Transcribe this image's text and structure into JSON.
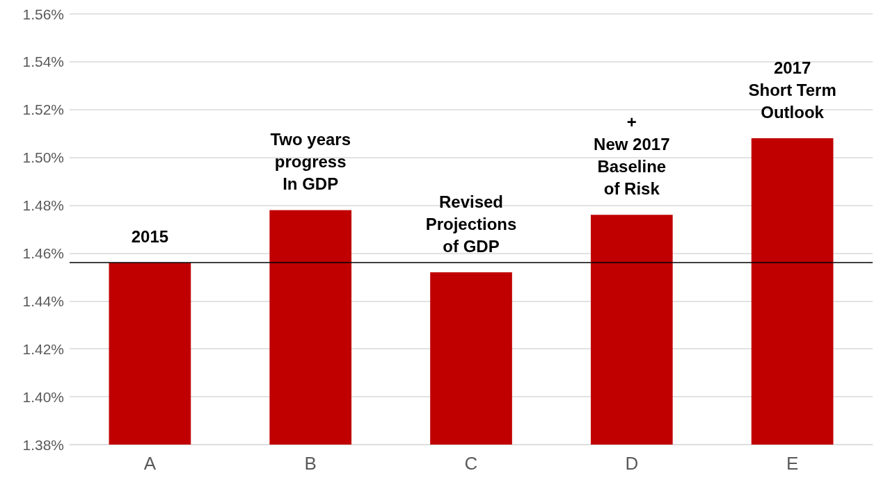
{
  "chart_data": {
    "type": "bar",
    "categories": [
      "A",
      "B",
      "C",
      "D",
      "E"
    ],
    "values": [
      1.456,
      1.478,
      1.452,
      1.476,
      1.508
    ],
    "color": "#c00000",
    "ylim": [
      1.38,
      1.56
    ],
    "yticks": [
      {
        "value": 1.38,
        "label": "1.38%"
      },
      {
        "value": 1.4,
        "label": "1.40%"
      },
      {
        "value": 1.42,
        "label": "1.42%"
      },
      {
        "value": 1.44,
        "label": "1.44%"
      },
      {
        "value": 1.46,
        "label": "1.46%"
      },
      {
        "value": 1.48,
        "label": "1.48%"
      },
      {
        "value": 1.5,
        "label": "1.50%"
      },
      {
        "value": 1.52,
        "label": "1.52%"
      },
      {
        "value": 1.54,
        "label": "1.54%"
      },
      {
        "value": 1.56,
        "label": "1.56%"
      }
    ],
    "grid": "y",
    "ref_lines": [
      {
        "axis": "y",
        "value": 1.456,
        "color": "#000000",
        "line_style": "solid"
      }
    ],
    "annotations": [
      {
        "text": "2015",
        "x": "A",
        "y": 1.456
      },
      {
        "text": "Two years\nprogress\nIn GDP",
        "x": "B",
        "y": 1.478
      },
      {
        "text": "Revised\nProjections\nof GDP",
        "x": "C",
        "y": 1.452
      },
      {
        "text": "+\nNew 2017\nBaseline\nof Risk",
        "x": "D",
        "y": 1.476
      },
      {
        "text": "2017\nShort Term\nOutlook",
        "x": "E",
        "y": 1.508
      }
    ]
  }
}
